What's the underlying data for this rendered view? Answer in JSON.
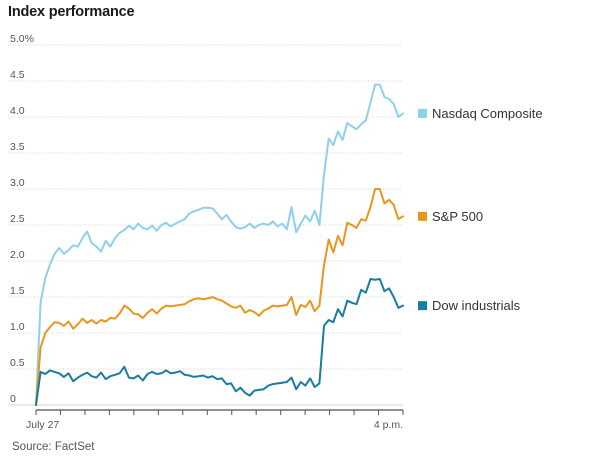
{
  "title": "Index performance",
  "source": "Source: FactSet",
  "chart_data": {
    "type": "line",
    "title": "Index performance",
    "xlabel": "",
    "ylabel": "",
    "x_tick_labels": [
      "July 27",
      "4 p.m."
    ],
    "ylim": [
      0,
      5
    ],
    "y_ticks": [
      0,
      0.5,
      1.0,
      1.5,
      2.0,
      2.5,
      3.0,
      3.5,
      4.0,
      4.5,
      5.0
    ],
    "y_tick_labels": [
      "0",
      "0.5",
      "1.0",
      "1.5",
      "2.0",
      "2.5",
      "3.0",
      "3.5",
      "4.0",
      "4.5",
      "5.0%"
    ],
    "grid": true,
    "legend_placement": "right",
    "series": [
      {
        "name": "Nasdaq Composite",
        "color": "#8fd0ea",
        "values": [
          0,
          1.43,
          1.76,
          1.95,
          2.1,
          2.18,
          2.1,
          2.15,
          2.22,
          2.2,
          2.32,
          2.41,
          2.25,
          2.2,
          2.13,
          2.28,
          2.2,
          2.32,
          2.39,
          2.43,
          2.49,
          2.44,
          2.52,
          2.46,
          2.44,
          2.49,
          2.42,
          2.5,
          2.53,
          2.48,
          2.52,
          2.55,
          2.58,
          2.66,
          2.69,
          2.71,
          2.74,
          2.74,
          2.73,
          2.66,
          2.58,
          2.64,
          2.55,
          2.47,
          2.45,
          2.47,
          2.52,
          2.46,
          2.5,
          2.52,
          2.5,
          2.55,
          2.48,
          2.52,
          2.44,
          2.75,
          2.4,
          2.52,
          2.63,
          2.55,
          2.7,
          2.5,
          3.2,
          3.7,
          3.61,
          3.8,
          3.68,
          3.92,
          3.87,
          3.83,
          3.9,
          3.95,
          4.2,
          4.45,
          4.45,
          4.28,
          4.25,
          4.18,
          4.0,
          4.05
        ]
      },
      {
        "name": "S&P 500",
        "color": "#e8961e",
        "values": [
          0,
          0.8,
          1.0,
          1.08,
          1.15,
          1.14,
          1.1,
          1.16,
          1.06,
          1.12,
          1.2,
          1.14,
          1.18,
          1.13,
          1.18,
          1.16,
          1.21,
          1.2,
          1.27,
          1.38,
          1.34,
          1.27,
          1.26,
          1.21,
          1.28,
          1.33,
          1.27,
          1.34,
          1.38,
          1.37,
          1.38,
          1.39,
          1.4,
          1.44,
          1.47,
          1.48,
          1.47,
          1.48,
          1.5,
          1.47,
          1.45,
          1.41,
          1.37,
          1.35,
          1.38,
          1.28,
          1.32,
          1.29,
          1.24,
          1.31,
          1.34,
          1.38,
          1.37,
          1.38,
          1.39,
          1.5,
          1.25,
          1.39,
          1.36,
          1.45,
          1.3,
          1.38,
          1.94,
          2.3,
          2.12,
          2.35,
          2.22,
          2.53,
          2.5,
          2.46,
          2.58,
          2.56,
          2.75,
          3.0,
          3.0,
          2.8,
          2.85,
          2.78,
          2.58,
          2.62
        ]
      },
      {
        "name": "Dow industrials",
        "color": "#1a7c9e",
        "values": [
          0,
          0.46,
          0.43,
          0.48,
          0.46,
          0.44,
          0.39,
          0.44,
          0.33,
          0.38,
          0.42,
          0.45,
          0.4,
          0.38,
          0.45,
          0.36,
          0.4,
          0.42,
          0.44,
          0.53,
          0.38,
          0.37,
          0.41,
          0.34,
          0.43,
          0.46,
          0.43,
          0.44,
          0.48,
          0.44,
          0.45,
          0.47,
          0.42,
          0.41,
          0.39,
          0.4,
          0.41,
          0.38,
          0.4,
          0.36,
          0.37,
          0.29,
          0.3,
          0.19,
          0.24,
          0.17,
          0.13,
          0.2,
          0.21,
          0.22,
          0.27,
          0.29,
          0.3,
          0.31,
          0.32,
          0.38,
          0.22,
          0.32,
          0.27,
          0.37,
          0.25,
          0.3,
          1.1,
          1.18,
          1.15,
          1.33,
          1.23,
          1.45,
          1.42,
          1.4,
          1.6,
          1.56,
          1.75,
          1.74,
          1.75,
          1.58,
          1.62,
          1.5,
          1.35,
          1.38
        ]
      }
    ],
    "end_labels_values": [
      4.05,
      2.62,
      1.38
    ]
  }
}
